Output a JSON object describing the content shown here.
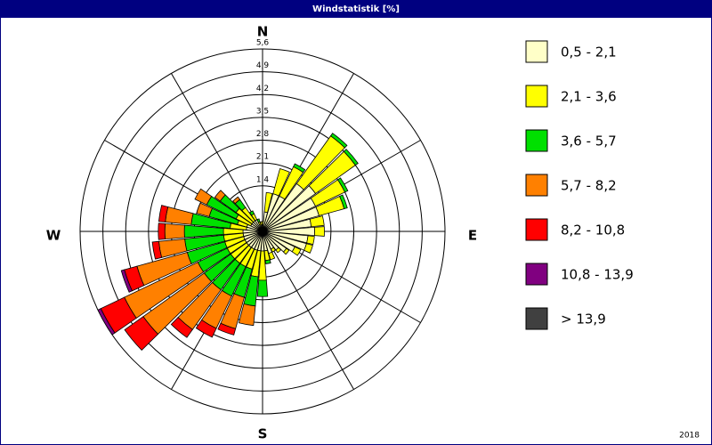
{
  "title_bar": "Windstatistik [%]",
  "footer": "2018",
  "chart_data": {
    "type": "windrose",
    "directions": [
      "N",
      "E",
      "S",
      "W"
    ],
    "rlim": [
      0,
      5.6
    ],
    "rticks": [
      {
        "value": 1.4,
        "label": "1,4"
      },
      {
        "value": 2.1,
        "label": "2,1"
      },
      {
        "value": 2.8,
        "label": "2,8"
      },
      {
        "value": 3.5,
        "label": "3,5"
      },
      {
        "value": 4.2,
        "label": "4,2"
      },
      {
        "value": 4.9,
        "label": "4,9"
      },
      {
        "value": 5.6,
        "label": "5,6"
      }
    ],
    "series": [
      {
        "name": "0,5 - 2,1",
        "color": "#ffffc8",
        "values": [
          0.2,
          0.6,
          1.2,
          1.2,
          1.8,
          2.0,
          1.8,
          1.8,
          1.5,
          1.6,
          1.4,
          1.4,
          1.1,
          0.9,
          0.7,
          0.6,
          0.7,
          0.6,
          0.6,
          0.6,
          0.6,
          0.6,
          0.6,
          0.6,
          0.6,
          0.6,
          0.6,
          0.6,
          0.5,
          0.5,
          0.4,
          0.4,
          0.4,
          0.4,
          0.2,
          0.2
        ]
      },
      {
        "name": "2,1 - 3,6",
        "color": "#ffff00",
        "values": [
          0.1,
          0.6,
          0.8,
          1.0,
          1.8,
          1.5,
          1.0,
          0.8,
          0.4,
          0.3,
          0.2,
          0.2,
          0.2,
          0.1,
          0.1,
          0.1,
          0.2,
          0.3,
          0.9,
          0.8,
          0.6,
          0.6,
          0.6,
          0.6,
          0.6,
          0.6,
          0.6,
          0.6,
          0.5,
          0.3,
          0.5,
          0.6,
          0.5,
          0.2,
          0.1,
          0.1
        ]
      },
      {
        "name": "3,6 - 5,7",
        "color": "#00e000",
        "values": [
          0,
          0,
          0,
          0.1,
          0.1,
          0.1,
          0.1,
          0.1,
          0,
          0,
          0,
          0,
          0,
          0,
          0,
          0,
          0,
          0.1,
          0.5,
          0.9,
          0.9,
          1.0,
          1.0,
          1.0,
          1.0,
          1.2,
          1.2,
          1.2,
          1.2,
          0.9,
          1.0,
          0.6,
          0.3,
          0.1,
          0.1,
          0
        ]
      },
      {
        "name": "5,7 - 8,2",
        "color": "#ff8000",
        "values": [
          0,
          0,
          0,
          0,
          0,
          0,
          0,
          0,
          0,
          0,
          0,
          0,
          0,
          0,
          0,
          0,
          0,
          0,
          0,
          0.6,
          1.0,
          1.1,
          1.5,
          2.3,
          2.5,
          1.6,
          0.8,
          0.6,
          0.8,
          0.4,
          0.4,
          0.2,
          0.1,
          0,
          0,
          0
        ]
      },
      {
        "name": "8,2 - 10,8",
        "color": "#ff0000",
        "values": [
          0,
          0,
          0,
          0,
          0,
          0,
          0,
          0,
          0,
          0,
          0,
          0,
          0,
          0,
          0,
          0,
          0,
          0,
          0,
          0,
          0.2,
          0.3,
          0.3,
          0.7,
          0.8,
          0.4,
          0.2,
          0.2,
          0.2,
          0,
          0,
          0,
          0,
          0,
          0,
          0
        ]
      },
      {
        "name": "10,8 - 13,9",
        "color": "#800080",
        "values": [
          0,
          0,
          0,
          0,
          0,
          0,
          0,
          0,
          0,
          0,
          0,
          0,
          0,
          0,
          0,
          0,
          0,
          0,
          0,
          0,
          0,
          0,
          0,
          0,
          0.1,
          0.1,
          0,
          0,
          0,
          0,
          0,
          0,
          0,
          0,
          0,
          0
        ]
      },
      {
        "name": "> 13,9",
        "color": "#404040",
        "values": [
          0,
          0,
          0,
          0,
          0,
          0,
          0,
          0,
          0,
          0,
          0,
          0,
          0,
          0,
          0,
          0,
          0,
          0,
          0,
          0,
          0,
          0,
          0,
          0,
          0,
          0,
          0,
          0,
          0,
          0,
          0,
          0,
          0,
          0,
          0,
          0
        ]
      }
    ]
  }
}
